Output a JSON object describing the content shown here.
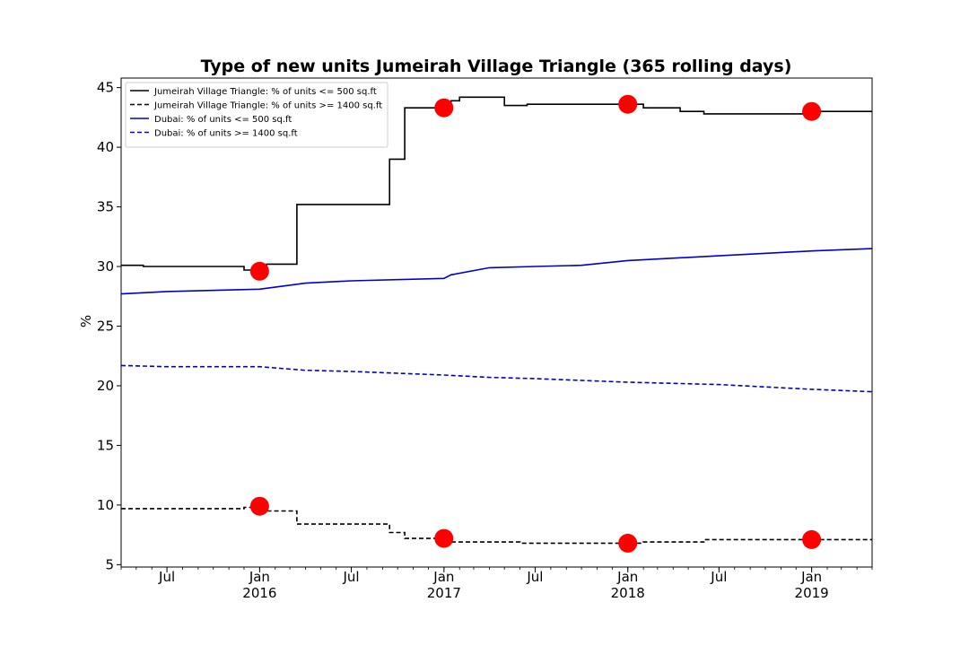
{
  "chart_data": {
    "type": "line",
    "title": "Type of new units Jumeirah Village Triangle (365 rolling days)",
    "xlabel": "",
    "ylabel": "%",
    "xlim": [
      "2015-04-01",
      "2019-05-01"
    ],
    "ylim": [
      4.8,
      45.8
    ],
    "y_ticks": [
      5,
      10,
      15,
      20,
      25,
      30,
      35,
      40,
      45
    ],
    "x_ticks": [
      {
        "date": "2015-07-01",
        "label": "Jul",
        "sublabel": ""
      },
      {
        "date": "2016-01-01",
        "label": "Jan",
        "sublabel": "2016"
      },
      {
        "date": "2016-07-01",
        "label": "Jul",
        "sublabel": ""
      },
      {
        "date": "2017-01-01",
        "label": "Jan",
        "sublabel": "2017"
      },
      {
        "date": "2017-07-01",
        "label": "Jul",
        "sublabel": ""
      },
      {
        "date": "2018-01-01",
        "label": "Jan",
        "sublabel": "2018"
      },
      {
        "date": "2018-07-01",
        "label": "Jul",
        "sublabel": ""
      },
      {
        "date": "2019-01-01",
        "label": "Jan",
        "sublabel": "2019"
      }
    ],
    "grid": false,
    "legend_position": "top-left",
    "series": [
      {
        "name": "Jumeirah Village Triangle: % of units <= 500 sq.ft",
        "color": "#000000",
        "style": "solid",
        "step": true,
        "points": [
          [
            "2015-04-01",
            30.1
          ],
          [
            "2015-05-15",
            30.0
          ],
          [
            "2015-12-01",
            29.7
          ],
          [
            "2016-01-15",
            30.2
          ],
          [
            "2016-03-15",
            35.2
          ],
          [
            "2016-09-15",
            39.0
          ],
          [
            "2016-10-15",
            43.3
          ],
          [
            "2017-01-15",
            43.9
          ],
          [
            "2017-02-01",
            44.2
          ],
          [
            "2017-05-01",
            43.5
          ],
          [
            "2017-06-15",
            43.6
          ],
          [
            "2018-02-01",
            43.3
          ],
          [
            "2018-04-15",
            43.0
          ],
          [
            "2018-06-01",
            42.8
          ],
          [
            "2018-12-15",
            43.0
          ],
          [
            "2019-05-01",
            43.0
          ]
        ]
      },
      {
        "name": "Jumeirah Village Triangle: % of units >= 1400 sq.ft",
        "color": "#000000",
        "style": "dashed",
        "step": true,
        "points": [
          [
            "2015-04-01",
            9.7
          ],
          [
            "2015-12-01",
            9.8
          ],
          [
            "2016-01-15",
            9.5
          ],
          [
            "2016-03-15",
            8.4
          ],
          [
            "2016-09-15",
            7.7
          ],
          [
            "2016-10-15",
            7.2
          ],
          [
            "2017-01-01",
            6.9
          ],
          [
            "2017-06-01",
            6.8
          ],
          [
            "2018-02-01",
            6.9
          ],
          [
            "2018-06-01",
            7.1
          ],
          [
            "2019-05-01",
            7.1
          ]
        ]
      },
      {
        "name": "Dubai: % of units <= 500 sq.ft",
        "color": "#0000cc",
        "style": "solid",
        "step": false,
        "points": [
          [
            "2015-04-01",
            27.7
          ],
          [
            "2015-07-01",
            27.9
          ],
          [
            "2016-01-01",
            28.1
          ],
          [
            "2016-04-01",
            28.6
          ],
          [
            "2016-07-01",
            28.8
          ],
          [
            "2017-01-01",
            29.0
          ],
          [
            "2017-01-15",
            29.3
          ],
          [
            "2017-04-01",
            29.9
          ],
          [
            "2017-07-01",
            30.0
          ],
          [
            "2017-10-01",
            30.1
          ],
          [
            "2018-01-01",
            30.5
          ],
          [
            "2018-07-01",
            30.9
          ],
          [
            "2019-01-01",
            31.3
          ],
          [
            "2019-05-01",
            31.5
          ]
        ]
      },
      {
        "name": "Dubai: % of units >= 1400 sq.ft",
        "color": "#0000cc",
        "style": "dashed",
        "step": false,
        "points": [
          [
            "2015-04-01",
            21.7
          ],
          [
            "2015-07-01",
            21.6
          ],
          [
            "2016-01-01",
            21.6
          ],
          [
            "2016-04-01",
            21.3
          ],
          [
            "2016-07-01",
            21.2
          ],
          [
            "2017-01-01",
            20.9
          ],
          [
            "2017-04-01",
            20.7
          ],
          [
            "2017-07-01",
            20.6
          ],
          [
            "2018-01-01",
            20.3
          ],
          [
            "2018-07-01",
            20.1
          ],
          [
            "2019-01-01",
            19.7
          ],
          [
            "2019-05-01",
            19.5
          ]
        ]
      }
    ],
    "markers": {
      "color": "#ff0000",
      "points": [
        [
          "2016-01-01",
          29.6
        ],
        [
          "2017-01-01",
          43.3
        ],
        [
          "2018-01-01",
          43.6
        ],
        [
          "2019-01-01",
          43.0
        ],
        [
          "2016-01-01",
          9.9
        ],
        [
          "2017-01-01",
          7.2
        ],
        [
          "2018-01-01",
          6.8
        ],
        [
          "2019-01-01",
          7.1
        ]
      ]
    }
  }
}
